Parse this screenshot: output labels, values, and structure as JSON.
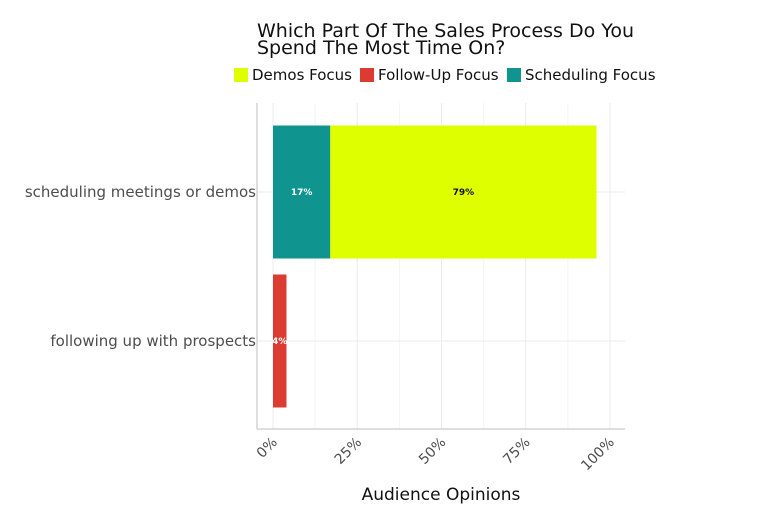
{
  "chart_data": {
    "type": "bar",
    "orientation": "horizontal",
    "stacked": true,
    "title_lines": [
      "Which Part Of The Sales Process Do You",
      "Spend The Most Time On?"
    ],
    "xlabel": "Audience Opinions",
    "ylabel": "",
    "xlim": [
      0,
      100
    ],
    "x_ticks": [
      0,
      25,
      50,
      75,
      100
    ],
    "x_tick_labels": [
      "0%",
      "25%",
      "50%",
      "75%",
      "100%"
    ],
    "grid": true,
    "legend_position": "top",
    "categories": [
      "scheduling meetings or demos",
      "following up with prospects"
    ],
    "series": [
      {
        "name": "Scheduling Focus",
        "color": "#0f9490",
        "label_color": "#ffffff",
        "values": [
          17,
          0
        ],
        "labels": [
          "17%",
          ""
        ]
      },
      {
        "name": "Demos Focus",
        "color": "#ddff00",
        "label_color": "#111111",
        "values": [
          79,
          0
        ],
        "labels": [
          "79%",
          ""
        ]
      },
      {
        "name": "Follow-Up Focus",
        "color": "#dc3b31",
        "label_color": "#ffffff",
        "values": [
          0,
          4
        ],
        "labels": [
          "",
          "4%"
        ]
      }
    ],
    "legend_order": [
      "Demos Focus",
      "Follow-Up Focus",
      "Scheduling Focus"
    ]
  }
}
